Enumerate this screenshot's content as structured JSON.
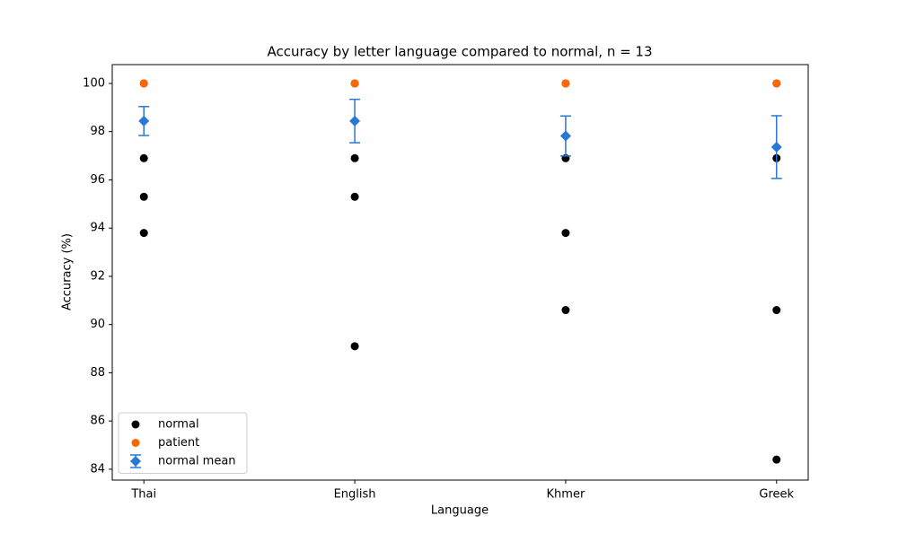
{
  "chart_data": {
    "type": "scatter",
    "title": "Accuracy by letter language compared to normal, n = 13",
    "x_label": "Language",
    "y_label": "Accuracy (%)",
    "categories": [
      "Thai",
      "English",
      "Khmer",
      "Greek"
    ],
    "series": [
      {
        "name": "normal",
        "color": "#000000",
        "marker": "circle",
        "values": [
          [
            100,
            96.9,
            95.3,
            93.8
          ],
          [
            100,
            96.9,
            95.3,
            89.1
          ],
          [
            100,
            96.9,
            93.8,
            90.6
          ],
          [
            100,
            96.9,
            90.6,
            84.4
          ]
        ]
      },
      {
        "name": "patient",
        "color": "#ff6600",
        "marker": "circle",
        "values": [
          [
            100
          ],
          [
            100
          ],
          [
            100
          ],
          [
            100
          ]
        ]
      },
      {
        "name": "normal mean",
        "color": "#2878d6",
        "marker": "diamond",
        "values": [
          98.44,
          98.44,
          97.82,
          97.36
        ],
        "errors": [
          0.6,
          0.9,
          0.83,
          1.3
        ]
      }
    ],
    "xlim": [
      -0.15,
      3.15
    ],
    "ylim": [
      83.55,
      100.78
    ],
    "yticks": [
      84,
      86,
      88,
      90,
      92,
      94,
      96,
      98,
      100
    ],
    "legend": "lower left"
  }
}
